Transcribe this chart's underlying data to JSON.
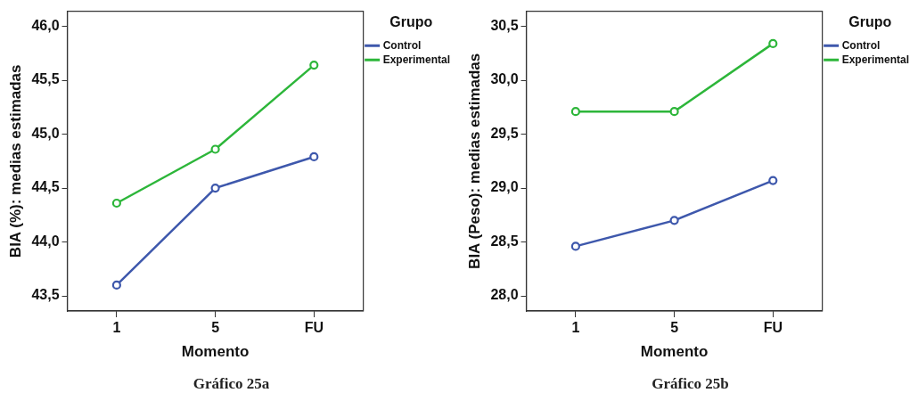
{
  "chart_data": [
    {
      "type": "line",
      "title": "Gráfico 25a",
      "xlabel": "Momento",
      "ylabel": "BIA (%): medias estimadas",
      "legend_title": "Grupo",
      "legend": "top right",
      "marker": "circle",
      "categories": [
        "1",
        "5",
        "FU"
      ],
      "series": [
        {
          "name": "Control",
          "color": "#3e58ac",
          "values": [
            43.6,
            44.5,
            44.79
          ]
        },
        {
          "name": "Experimental",
          "color": "#2db63a",
          "values": [
            44.36,
            44.86,
            45.64
          ]
        }
      ],
      "ylim": [
        43.36,
        46.14
      ],
      "yticks": [
        {
          "value": 43.5,
          "label": "43,5"
        },
        {
          "value": 44,
          "label": "44,0"
        },
        {
          "value": 44.5,
          "label": "44,5"
        },
        {
          "value": 45,
          "label": "45,0"
        },
        {
          "value": 45.5,
          "label": "45,5"
        },
        {
          "value": 46,
          "label": "46,0"
        }
      ]
    },
    {
      "type": "line",
      "title": "Gráfico 25b",
      "xlabel": "Momento",
      "ylabel": "BIA (Peso): medias estimadas",
      "legend_title": "Grupo",
      "legend": "top right",
      "marker": "circle",
      "categories": [
        "1",
        "5",
        "FU"
      ],
      "series": [
        {
          "name": "Control",
          "color": "#3e58ac",
          "values": [
            28.46,
            28.7,
            29.07
          ]
        },
        {
          "name": "Experimental",
          "color": "#2db63a",
          "values": [
            29.71,
            29.71,
            30.34
          ]
        }
      ],
      "ylim": [
        27.86,
        30.64
      ],
      "yticks": [
        {
          "value": 28,
          "label": "28,0"
        },
        {
          "value": 28.5,
          "label": "28,5"
        },
        {
          "value": 29,
          "label": "29,0"
        },
        {
          "value": 29.5,
          "label": "29,5"
        },
        {
          "value": 30,
          "label": "30,0"
        },
        {
          "value": 30.5,
          "label": "30,5"
        }
      ]
    }
  ]
}
